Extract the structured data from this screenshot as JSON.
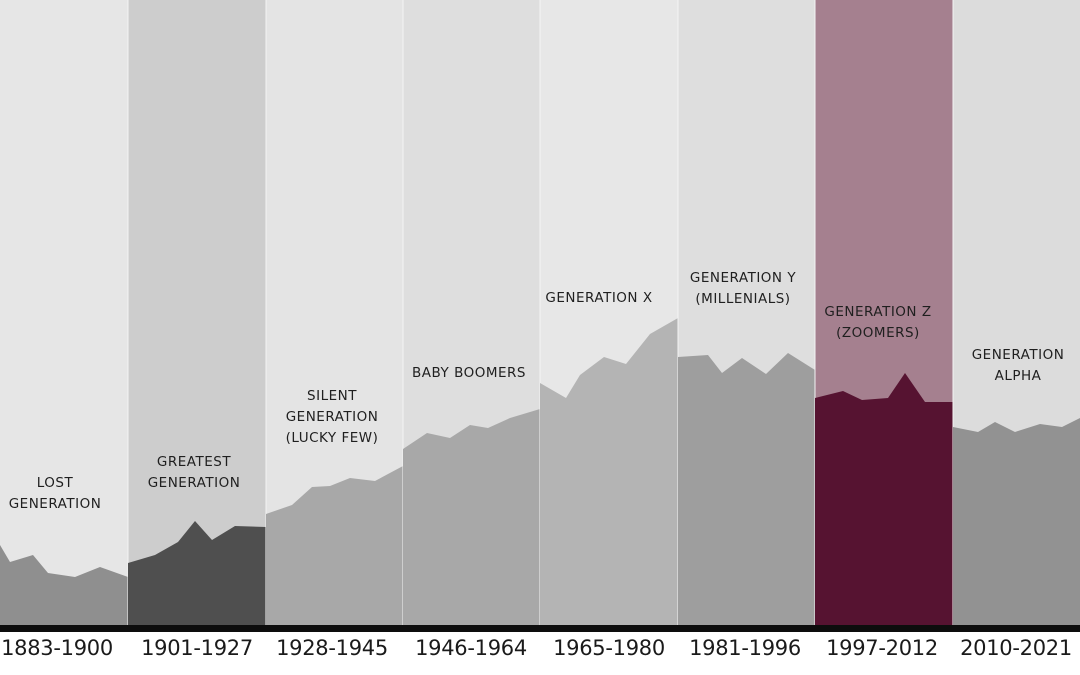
{
  "generations": [
    {
      "name_lines": [
        "LOST",
        "GENERATION"
      ],
      "years": "1883-1900",
      "bg": "#e6e6e6",
      "fill": "#8f8f8f"
    },
    {
      "name_lines": [
        "GREATEST",
        "GENERATION"
      ],
      "years": "1901-1927",
      "bg": "#cdcdcd",
      "fill": "#4f4f4f"
    },
    {
      "name_lines": [
        "SILENT",
        "GENERATION",
        "(LUCKY FEW)"
      ],
      "years": "1928-1945",
      "bg": "#e4e4e4",
      "fill": "#a8a8a8"
    },
    {
      "name_lines": [
        "BABY BOOMERS"
      ],
      "years": "1946-1964",
      "bg": "#dedede",
      "fill": "#a8a8a8"
    },
    {
      "name_lines": [
        "GENERATION X"
      ],
      "years": "1965-1980",
      "bg": "#e7e7e7",
      "fill": "#b4b4b4"
    },
    {
      "name_lines": [
        "GENERATION Y",
        "(MILLENIALS)"
      ],
      "years": "1981-1996",
      "bg": "#dedede",
      "fill": "#9e9e9e"
    },
    {
      "name_lines": [
        "GENERATION Z",
        "(ZOOMERS)"
      ],
      "years": "1997-2012",
      "bg": "#a5808f",
      "fill": "#561331",
      "highlight": true
    },
    {
      "name_lines": [
        "GENERATION",
        "ALPHA"
      ],
      "years": "2010-2021",
      "bg": "#dcdcdc",
      "fill": "#929292"
    }
  ]
}
